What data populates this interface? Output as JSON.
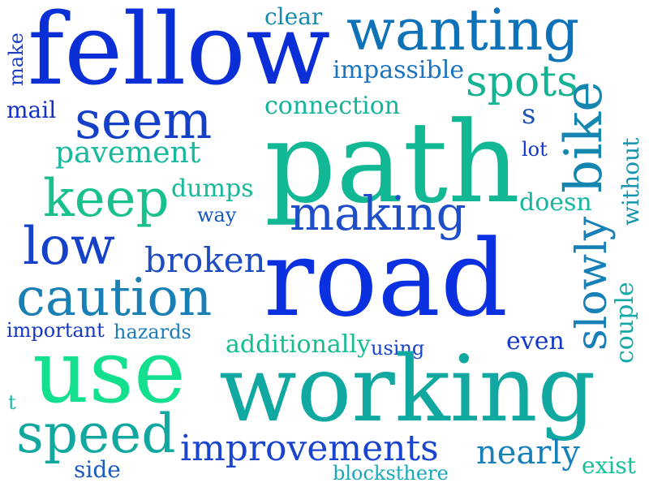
{
  "words": [
    {
      "id": "fellow",
      "text": "fellow",
      "color": "#0a2fd6"
    },
    {
      "id": "wanting",
      "text": "wanting",
      "color": "#0e72b8"
    },
    {
      "id": "clear",
      "text": "clear",
      "color": "#1488b0"
    },
    {
      "id": "make",
      "text": "make",
      "color": "#1c3fc6"
    },
    {
      "id": "impassible",
      "text": "impassible",
      "color": "#1b74c0"
    },
    {
      "id": "spots",
      "text": "spots",
      "color": "#14b393"
    },
    {
      "id": "mail",
      "text": "mail",
      "color": "#1030c8"
    },
    {
      "id": "seem",
      "text": "seem",
      "color": "#1440c8"
    },
    {
      "id": "connection",
      "text": "connection",
      "color": "#14b39b"
    },
    {
      "id": "s",
      "text": "s",
      "color": "#1e56b8"
    },
    {
      "id": "path",
      "text": "path",
      "color": "#12b894"
    },
    {
      "id": "bike",
      "text": "bike",
      "color": "#1486b0"
    },
    {
      "id": "pavement",
      "text": "pavement",
      "color": "#17b89d"
    },
    {
      "id": "lot",
      "text": "lot",
      "color": "#1236c8"
    },
    {
      "id": "keep",
      "text": "keep",
      "color": "#17c08c"
    },
    {
      "id": "dumps",
      "text": "dumps",
      "color": "#15b99a"
    },
    {
      "id": "way",
      "text": "way",
      "color": "#1656c0"
    },
    {
      "id": "making",
      "text": "making",
      "color": "#1e4ec8"
    },
    {
      "id": "doesn",
      "text": "doesn",
      "color": "#15b7a0"
    },
    {
      "id": "without",
      "text": "without",
      "color": "#1694ae"
    },
    {
      "id": "low",
      "text": "low",
      "color": "#1540c8"
    },
    {
      "id": "slowly",
      "text": "slowly",
      "color": "#1880b8"
    },
    {
      "id": "broken",
      "text": "broken",
      "color": "#1e4cc0"
    },
    {
      "id": "road",
      "text": "road",
      "color": "#0a30e0"
    },
    {
      "id": "caution",
      "text": "caution",
      "color": "#1880b4"
    },
    {
      "id": "couple",
      "text": "couple",
      "color": "#15a8a8"
    },
    {
      "id": "important",
      "text": "important",
      "color": "#1638c4"
    },
    {
      "id": "hazards",
      "text": "hazards",
      "color": "#1a7cb8"
    },
    {
      "id": "additionally",
      "text": "additionally",
      "color": "#16bd92"
    },
    {
      "id": "using",
      "text": "using",
      "color": "#1a44c8"
    },
    {
      "id": "even",
      "text": "even",
      "color": "#1638c8"
    },
    {
      "id": "use",
      "text": "use",
      "color": "#12e08e"
    },
    {
      "id": "working",
      "text": "working",
      "color": "#10a8a0"
    },
    {
      "id": "t",
      "text": "t",
      "color": "#17b8a0"
    },
    {
      "id": "speed",
      "text": "speed",
      "color": "#12a8a0"
    },
    {
      "id": "improvements",
      "text": "improvements",
      "color": "#1a44cc"
    },
    {
      "id": "nearly",
      "text": "nearly",
      "color": "#1880b8"
    },
    {
      "id": "side",
      "text": "side",
      "color": "#1a5cc0"
    },
    {
      "id": "blocksthere",
      "text": "blocksthere",
      "color": "#17a8b8"
    },
    {
      "id": "exist",
      "text": "exist",
      "color": "#16c09a"
    }
  ]
}
